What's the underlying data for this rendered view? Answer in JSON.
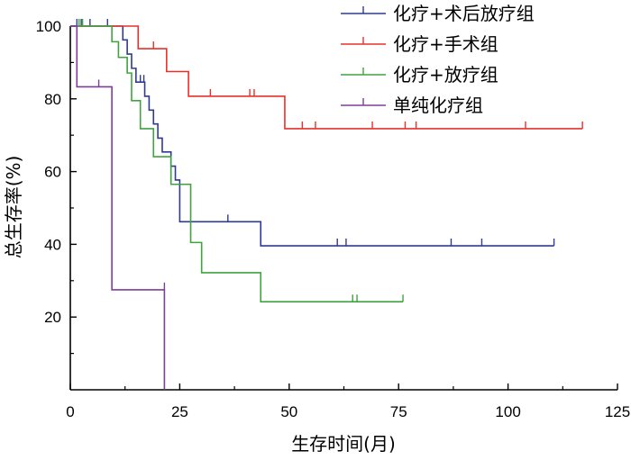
{
  "chart_data": {
    "type": "line",
    "subtype": "kaplan-meier-step",
    "xlabel": "生存时间(月)",
    "ylabel": "总生存率(%)",
    "xlim": [
      0,
      125
    ],
    "ylim": [
      0,
      100
    ],
    "xticks": [
      0,
      25,
      50,
      75,
      100,
      125
    ],
    "yticks": [
      20,
      40,
      60,
      80,
      100
    ],
    "grid": false,
    "legend_position": "top-right",
    "series": [
      {
        "name": "化疗+术后放疗组",
        "color": "#2f3b8f",
        "steps": [
          [
            0,
            100
          ],
          [
            12,
            96.2
          ],
          [
            13,
            92.3
          ],
          [
            14,
            88.4
          ],
          [
            15,
            84.6
          ],
          [
            17,
            80.7
          ],
          [
            18,
            76.9
          ],
          [
            19,
            73.1
          ],
          [
            20,
            69.2
          ],
          [
            21,
            65.4
          ],
          [
            23,
            61.5
          ],
          [
            24,
            57.7
          ],
          [
            25,
            46.2
          ],
          [
            43.5,
            39.6
          ],
          [
            110.5,
            39.6
          ]
        ],
        "censors": [
          [
            1.5,
            100
          ],
          [
            2.5,
            100
          ],
          [
            4.5,
            100
          ],
          [
            8.5,
            100
          ],
          [
            16,
            84.6
          ],
          [
            16.8,
            84.6
          ],
          [
            36,
            46.2
          ],
          [
            61,
            39.6
          ],
          [
            63,
            39.6
          ],
          [
            87,
            39.6
          ],
          [
            94,
            39.6
          ],
          [
            110.5,
            39.6
          ]
        ]
      },
      {
        "name": "化疗+手术组",
        "color": "#e8302b",
        "steps": [
          [
            0,
            100
          ],
          [
            15.5,
            93.8
          ],
          [
            22,
            87.5
          ],
          [
            27,
            80.7
          ],
          [
            49,
            71.8
          ],
          [
            117,
            71.8
          ]
        ],
        "censors": [
          [
            19,
            93.8
          ],
          [
            32,
            80.7
          ],
          [
            41,
            80.7
          ],
          [
            42,
            80.7
          ],
          [
            53,
            71.8
          ],
          [
            56,
            71.8
          ],
          [
            69,
            71.8
          ],
          [
            76.5,
            71.8
          ],
          [
            79,
            71.8
          ],
          [
            104,
            71.8
          ],
          [
            117,
            71.8
          ]
        ]
      },
      {
        "name": "化疗+放疗组",
        "color": "#3fa33f",
        "steps": [
          [
            0,
            100
          ],
          [
            9.5,
            95.7
          ],
          [
            11,
            91.4
          ],
          [
            13,
            87.1
          ],
          [
            14,
            79.5
          ],
          [
            16,
            71.8
          ],
          [
            19,
            64.1
          ],
          [
            23,
            56.5
          ],
          [
            27.5,
            40.5
          ],
          [
            30,
            32.2
          ],
          [
            43.5,
            24.2
          ],
          [
            76,
            24.2
          ]
        ],
        "censors": [
          [
            2,
            100
          ],
          [
            2.8,
            100
          ],
          [
            64.5,
            24.2
          ],
          [
            65.5,
            24.2
          ],
          [
            76,
            24.2
          ]
        ]
      },
      {
        "name": "单纯化疗组",
        "color": "#7b3f98",
        "steps": [
          [
            0,
            100
          ],
          [
            1.5,
            83.3
          ],
          [
            9.5,
            27.5
          ],
          [
            21.5,
            0
          ]
        ],
        "censors": [
          [
            6.5,
            83.3
          ],
          [
            21.5,
            27.5
          ]
        ]
      }
    ]
  }
}
